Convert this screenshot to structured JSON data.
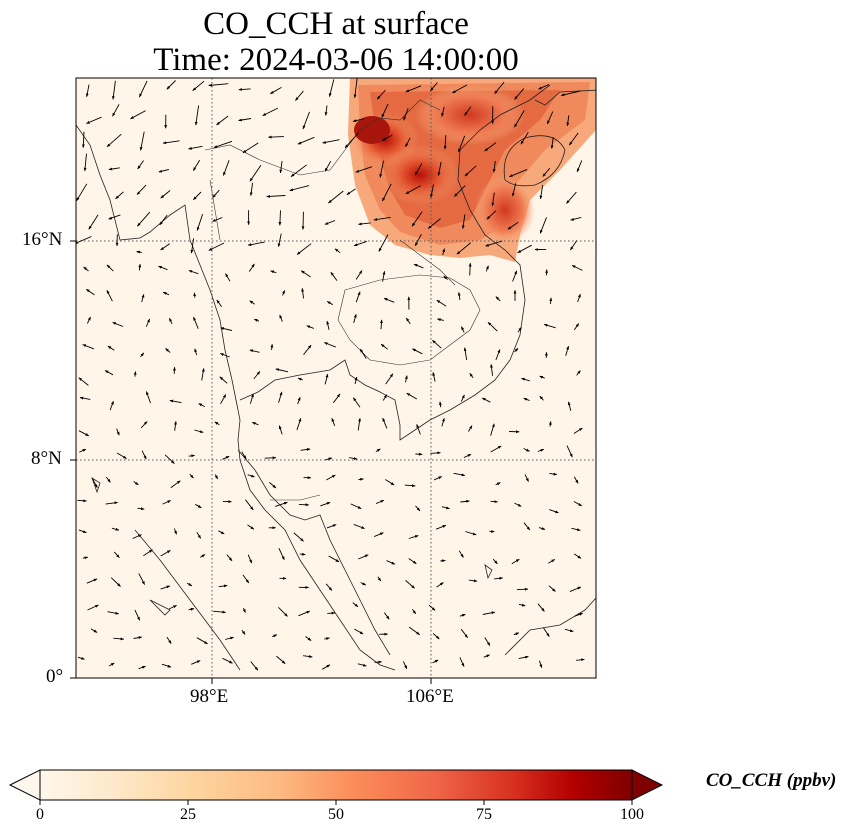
{
  "title": {
    "line1": "CO_CCH at surface",
    "line2": "Time: 2024-03-06 14:00:00"
  },
  "axes": {
    "lat_ticks": [
      "16°N",
      "8°N",
      "0°"
    ],
    "lon_ticks": [
      "98°E",
      "106°E"
    ],
    "gridlines": "dotted"
  },
  "colorbar": {
    "label": "CO_CCH (ppbv)",
    "ticks": [
      "0",
      "25",
      "50",
      "75",
      "100"
    ],
    "range": [
      0,
      100
    ],
    "extend": "both",
    "colormap": "OrRd",
    "colors": [
      "#fff7ec",
      "#fee8c8",
      "#fdd49e",
      "#fdbb84",
      "#fc8d59",
      "#ef6548",
      "#d7301f",
      "#b30000",
      "#7f0000"
    ]
  },
  "map": {
    "extent": {
      "lon": [
        93,
        112
      ],
      "lat": [
        0,
        22
      ]
    },
    "background_color": "#fff5e8",
    "overlay": "wind vectors",
    "high_concentration_region": "Northern Vietnam / Laos / Gulf of Tonkin (approx. 15–22°N, 103–110°E), peak ~80–90 ppbv"
  }
}
